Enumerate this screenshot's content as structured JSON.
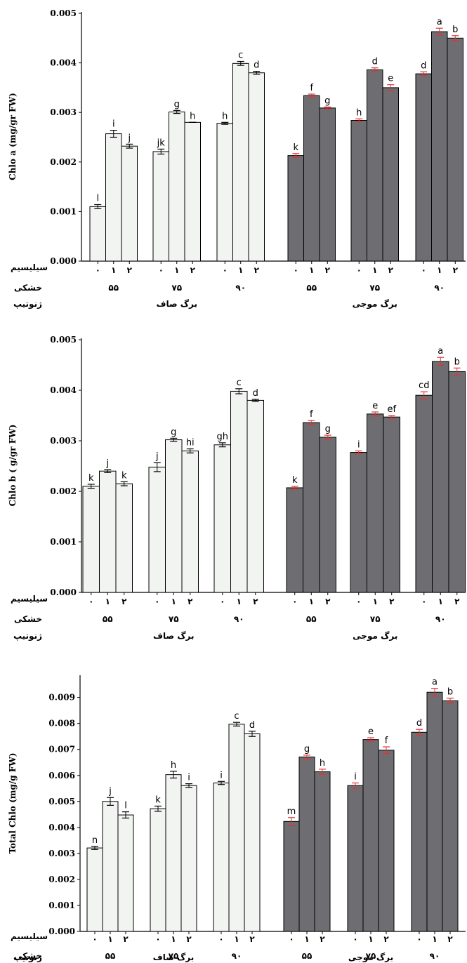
{
  "colors": {
    "light_bar": "#f2f4f2",
    "dark_bar": "#6e6e72",
    "err_light": "#000000",
    "err_dark": "#e53030"
  },
  "row_labels": {
    "silicon": "سیلیسیم",
    "drought": "خشکی",
    "genotype": "ژنوتیپ"
  },
  "silicon_levels": [
    "۰",
    "۱",
    "۲"
  ],
  "drought_levels": [
    "۵۵",
    "۷۵",
    "۹۰",
    "۵۵",
    "۷۵",
    "۹۰"
  ],
  "genotypes": [
    "برگ صاف",
    "برگ موجی"
  ],
  "chart_data": [
    {
      "type": "bar",
      "ylabel": "Chlo a (mg/gr FW)",
      "ylim": [
        0,
        0.005
      ],
      "yticks": [
        "0.000",
        "0.001",
        "0.002",
        "0.003",
        "0.004",
        "0.005"
      ],
      "values": [
        0.0011,
        0.00257,
        0.00232,
        0.00221,
        0.00301,
        0.0028,
        0.00278,
        0.00399,
        0.0038,
        0.00213,
        0.00334,
        0.00309,
        0.00284,
        0.00386,
        0.0035,
        0.00378,
        0.00463,
        0.0045
      ],
      "errors": [
        4e-05,
        7e-05,
        4e-05,
        5e-05,
        3e-05,
        0.0,
        2e-05,
        4e-05,
        3e-05,
        4e-05,
        3e-05,
        2e-05,
        3e-05,
        4e-05,
        6e-05,
        4e-05,
        7e-05,
        5e-05
      ],
      "letters": [
        "l",
        "i",
        "j",
        "jk",
        "g",
        "h",
        "h",
        "c",
        "d",
        "k",
        "f",
        "g",
        "h",
        "d",
        "e",
        "d",
        "a",
        "b"
      ]
    },
    {
      "type": "bar",
      "ylabel": "Chlo b ( g/gr FW)",
      "ylim": [
        0,
        0.005
      ],
      "yticks": [
        "0.000",
        "0.001",
        "0.002",
        "0.003",
        "0.004",
        "0.005"
      ],
      "values": [
        0.0021,
        0.0024,
        0.00215,
        0.00248,
        0.00302,
        0.0028,
        0.00292,
        0.00398,
        0.0038,
        0.00207,
        0.00336,
        0.00307,
        0.00277,
        0.00353,
        0.00347,
        0.0039,
        0.00457,
        0.00437
      ],
      "errors": [
        4e-05,
        3e-05,
        4e-05,
        9e-05,
        3e-05,
        4e-05,
        4e-05,
        5e-05,
        2e-05,
        3e-05,
        4e-05,
        4e-05,
        3e-05,
        4e-05,
        3e-05,
        7e-05,
        8e-05,
        7e-05
      ],
      "letters": [
        "k",
        "j",
        "k",
        "j",
        "g",
        "hi",
        "gh",
        "c",
        "d",
        "k",
        "f",
        "g",
        "i",
        "e",
        "ef",
        "cd",
        "a",
        "b"
      ]
    },
    {
      "type": "bar",
      "ylabel": "Total Chlo (mg/g FW)",
      "ylim": [
        0,
        0.0098
      ],
      "yticks": [
        "0.000",
        "0.001",
        "0.002",
        "0.003",
        "0.004",
        "0.005",
        "0.006",
        "0.007",
        "0.008",
        "0.009"
      ],
      "values": [
        0.00321,
        0.005,
        0.00448,
        0.00472,
        0.00603,
        0.00561,
        0.00571,
        0.00797,
        0.0076,
        0.00423,
        0.00671,
        0.00614,
        0.00561,
        0.00738,
        0.00697,
        0.00766,
        0.0092,
        0.00887
      ],
      "errors": [
        6e-05,
        0.00015,
        0.00012,
        0.0001,
        0.00013,
        7e-05,
        6e-05,
        7e-05,
        0.0001,
        0.00015,
        7e-05,
        0.0001,
        0.0001,
        7e-05,
        0.00013,
        0.00011,
        0.00015,
        0.0001
      ],
      "letters": [
        "n",
        "j",
        "l",
        "k",
        "h",
        "i",
        "i",
        "c",
        "d",
        "m",
        "g",
        "h",
        "i",
        "e",
        "f",
        "d",
        "a",
        "b"
      ]
    }
  ]
}
